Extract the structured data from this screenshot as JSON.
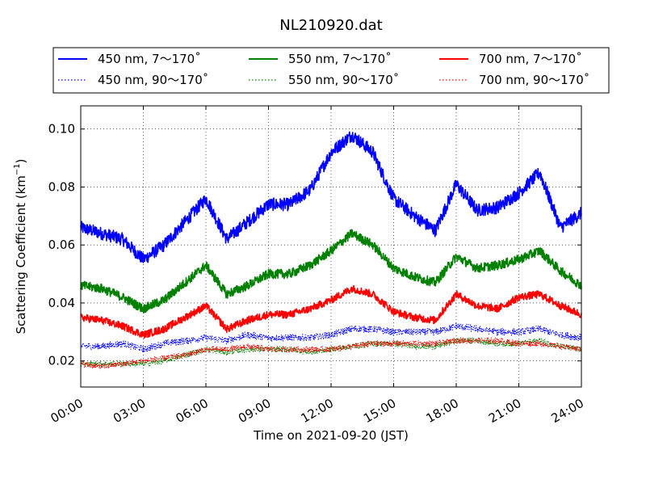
{
  "chart_data": {
    "type": "line",
    "title": "NL210920.dat",
    "xlabel": "Time on 2021-09-20 (JST)",
    "ylabel": "Scattering Coefficient (km",
    "ylabel_exponent": "−1",
    "ylabel_close": ")",
    "xlim": [
      "00:00",
      "24:00"
    ],
    "ylim": [
      0.011,
      0.108
    ],
    "x_ticks": [
      "00:00",
      "03:00",
      "06:00",
      "09:00",
      "12:00",
      "15:00",
      "18:00",
      "21:00",
      "24:00"
    ],
    "y_ticks": [
      "0.02",
      "0.04",
      "0.06",
      "0.08",
      "0.10"
    ],
    "grid": true,
    "legend_position": "top",
    "x": [
      "00:00",
      "01:00",
      "02:00",
      "03:00",
      "04:00",
      "05:00",
      "06:00",
      "07:00",
      "08:00",
      "09:00",
      "10:00",
      "11:00",
      "12:00",
      "13:00",
      "14:00",
      "15:00",
      "16:00",
      "17:00",
      "18:00",
      "19:00",
      "20:00",
      "21:00",
      "22:00",
      "23:00",
      "24:00"
    ],
    "series": [
      {
        "name": "450 nm, 7～170˚",
        "color": "#0000ff",
        "style": "solid",
        "noise": 0.0022,
        "values": [
          0.066,
          0.064,
          0.062,
          0.055,
          0.06,
          0.068,
          0.076,
          0.062,
          0.068,
          0.074,
          0.074,
          0.079,
          0.092,
          0.098,
          0.092,
          0.076,
          0.07,
          0.065,
          0.081,
          0.072,
          0.073,
          0.078,
          0.085,
          0.066,
          0.071
        ]
      },
      {
        "name": "450 nm, 90～170˚",
        "color": "#0000ff",
        "style": "dotted",
        "noise": 0.0012,
        "values": [
          0.025,
          0.025,
          0.026,
          0.024,
          0.026,
          0.027,
          0.028,
          0.027,
          0.029,
          0.028,
          0.028,
          0.028,
          0.029,
          0.031,
          0.031,
          0.03,
          0.03,
          0.03,
          0.032,
          0.031,
          0.03,
          0.03,
          0.031,
          0.029,
          0.028
        ]
      },
      {
        "name": "550 nm, 7～170˚",
        "color": "#008000",
        "style": "solid",
        "noise": 0.0016,
        "values": [
          0.046,
          0.045,
          0.042,
          0.038,
          0.041,
          0.047,
          0.053,
          0.043,
          0.046,
          0.05,
          0.05,
          0.053,
          0.058,
          0.064,
          0.06,
          0.052,
          0.049,
          0.047,
          0.056,
          0.052,
          0.053,
          0.055,
          0.058,
          0.051,
          0.046
        ]
      },
      {
        "name": "550 nm, 90～170˚",
        "color": "#008000",
        "style": "dotted",
        "noise": 0.001,
        "values": [
          0.019,
          0.019,
          0.019,
          0.019,
          0.02,
          0.022,
          0.024,
          0.023,
          0.024,
          0.024,
          0.024,
          0.023,
          0.024,
          0.025,
          0.026,
          0.026,
          0.025,
          0.025,
          0.027,
          0.027,
          0.026,
          0.026,
          0.027,
          0.025,
          0.024
        ]
      },
      {
        "name": "700 nm, 7～170˚",
        "color": "#ff0000",
        "style": "solid",
        "noise": 0.0013,
        "values": [
          0.035,
          0.034,
          0.032,
          0.029,
          0.031,
          0.035,
          0.039,
          0.031,
          0.034,
          0.036,
          0.036,
          0.038,
          0.041,
          0.045,
          0.043,
          0.037,
          0.035,
          0.034,
          0.043,
          0.039,
          0.038,
          0.042,
          0.043,
          0.039,
          0.036
        ]
      },
      {
        "name": "700 nm, 90～170˚",
        "color": "#ff0000",
        "style": "dotted",
        "noise": 0.001,
        "values": [
          0.019,
          0.018,
          0.019,
          0.02,
          0.021,
          0.022,
          0.024,
          0.024,
          0.025,
          0.024,
          0.024,
          0.024,
          0.024,
          0.025,
          0.026,
          0.026,
          0.026,
          0.026,
          0.027,
          0.027,
          0.027,
          0.026,
          0.026,
          0.025,
          0.024
        ]
      }
    ]
  }
}
